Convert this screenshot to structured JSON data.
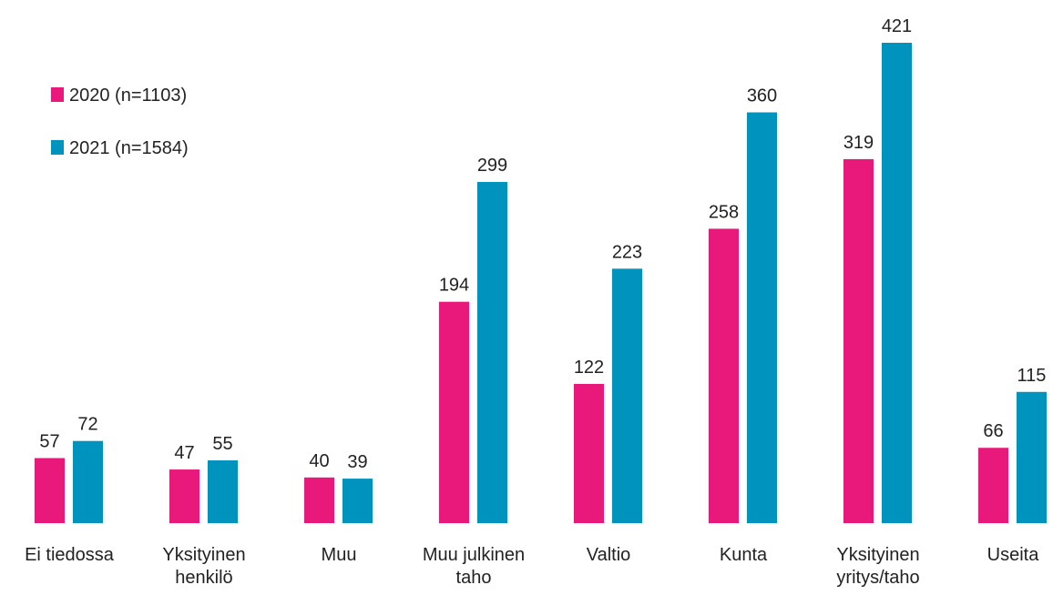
{
  "chart_data": {
    "type": "bar",
    "categories": [
      "Ei tiedossa",
      "Yksityinen\nhenkilö",
      "Muu",
      "Muu julkinen\ntaho",
      "Valtio",
      "Kunta",
      "Yksityinen\nyritys/taho",
      "Useita"
    ],
    "series": [
      {
        "name": "2020 (n=1103)",
        "color": "#e8197a",
        "values": [
          57,
          47,
          40,
          194,
          122,
          258,
          319,
          66
        ]
      },
      {
        "name": "2021 (n=1584)",
        "color": "#0093bd",
        "values": [
          72,
          55,
          39,
          299,
          223,
          360,
          421,
          115
        ]
      }
    ],
    "legend": "upper left"
  }
}
